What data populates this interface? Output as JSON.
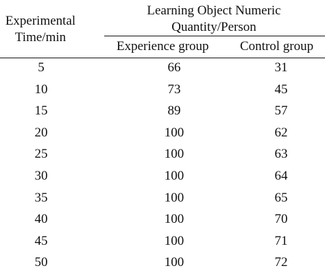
{
  "table": {
    "header": {
      "time_line1": "Experimental",
      "time_line2": "Time/min",
      "group_line1": "Learning Object Numeric",
      "group_line2": "Quantity/Person",
      "col_experience": "Experience group",
      "col_control": "Control group"
    },
    "rows": [
      {
        "time": "5",
        "experience": "66",
        "control": "31"
      },
      {
        "time": "10",
        "experience": "73",
        "control": "45"
      },
      {
        "time": "15",
        "experience": "89",
        "control": "57"
      },
      {
        "time": "20",
        "experience": "100",
        "control": "62"
      },
      {
        "time": "25",
        "experience": "100",
        "control": "63"
      },
      {
        "time": "30",
        "experience": "100",
        "control": "64"
      },
      {
        "time": "35",
        "experience": "100",
        "control": "65"
      },
      {
        "time": "40",
        "experience": "100",
        "control": "70"
      },
      {
        "time": "45",
        "experience": "100",
        "control": "71"
      },
      {
        "time": "50",
        "experience": "100",
        "control": "72"
      }
    ]
  }
}
